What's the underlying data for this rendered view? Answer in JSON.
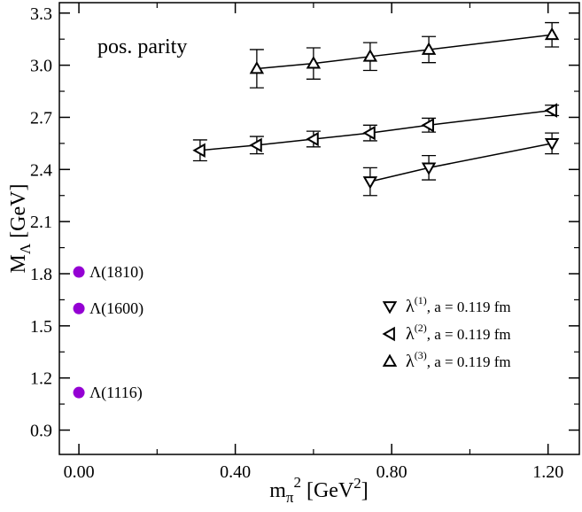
{
  "chart_data": {
    "type": "scatter",
    "title": "",
    "annotation": "pos. parity",
    "xlabel": {
      "base": "m",
      "sub": "π",
      "sup": "2",
      "unit_open": " [GeV",
      "unit_sup": "2",
      "unit_close": "]"
    },
    "ylabel": {
      "base": "M",
      "sub": "Λ",
      "unit": " [GeV]"
    },
    "xlim": [
      -0.05,
      1.28
    ],
    "ylim": [
      0.76,
      3.36
    ],
    "xticks": [
      {
        "value": 0.0,
        "label": "0.00"
      },
      {
        "value": 0.4,
        "label": "0.40"
      },
      {
        "value": 0.8,
        "label": "0.80"
      },
      {
        "value": 1.2,
        "label": "1.20"
      }
    ],
    "yticks": [
      {
        "value": 0.9,
        "label": "0.9"
      },
      {
        "value": 1.2,
        "label": "1.2"
      },
      {
        "value": 1.5,
        "label": "1.5"
      },
      {
        "value": 1.8,
        "label": "1.8"
      },
      {
        "value": 2.1,
        "label": "2.1"
      },
      {
        "value": 2.4,
        "label": "2.4"
      },
      {
        "value": 2.7,
        "label": "2.7"
      },
      {
        "value": 3.0,
        "label": "3.0"
      },
      {
        "value": 3.3,
        "label": "3.3"
      }
    ],
    "series": [
      {
        "name": "λ(1), a = 0.119 fm",
        "legend": {
          "symbol": "λ",
          "sup": "(1)",
          "text": ", a = 0.119 fm"
        },
        "marker": "triangle-down",
        "x": [
          0.745,
          0.895,
          1.21
        ],
        "y": [
          2.33,
          2.41,
          2.55
        ],
        "err": [
          0.08,
          0.07,
          0.06
        ]
      },
      {
        "name": "λ(2), a = 0.119 fm",
        "legend": {
          "symbol": "λ",
          "sup": "(2)",
          "text": ", a = 0.119 fm"
        },
        "marker": "triangle-left",
        "x": [
          0.31,
          0.455,
          0.6,
          0.745,
          0.895,
          1.21
        ],
        "y": [
          2.51,
          2.54,
          2.575,
          2.61,
          2.655,
          2.74
        ],
        "err": [
          0.06,
          0.05,
          0.045,
          0.045,
          0.04,
          0.03
        ]
      },
      {
        "name": "λ(3), a = 0.119 fm",
        "legend": {
          "symbol": "λ",
          "sup": "(3)",
          "text": ", a = 0.119 fm"
        },
        "marker": "triangle-up",
        "x": [
          0.455,
          0.6,
          0.745,
          0.895,
          1.21
        ],
        "y": [
          2.98,
          3.01,
          3.05,
          3.09,
          3.175
        ],
        "err": [
          0.11,
          0.09,
          0.08,
          0.075,
          0.07
        ]
      }
    ],
    "experimental_points": [
      {
        "label": "Λ(1810)",
        "x": 0.0,
        "y": 1.81
      },
      {
        "label": "Λ(1600)",
        "x": 0.0,
        "y": 1.6
      },
      {
        "label": "Λ(1116)",
        "x": 0.0,
        "y": 1.116
      }
    ],
    "colors": {
      "exp_point": "#9400D3",
      "line": "#000000"
    }
  }
}
